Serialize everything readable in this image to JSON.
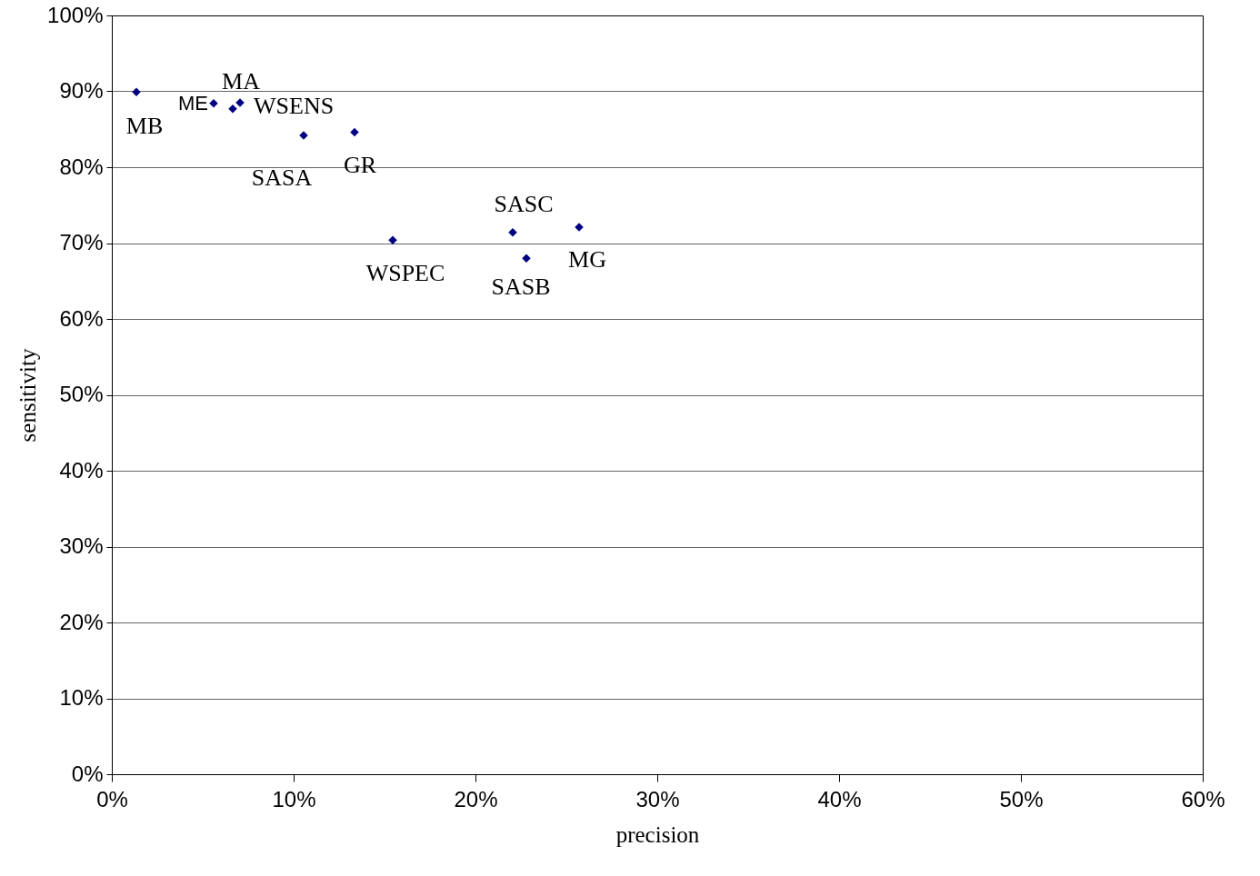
{
  "chart_data": {
    "type": "scatter",
    "xlabel": "precision",
    "ylabel": "sensitivity",
    "x": [
      1.35,
      5.6,
      6.65,
      7.05,
      10.55,
      13.35,
      15.45,
      22.05,
      22.8,
      25.7
    ],
    "series": [
      {
        "color": "#000080",
        "values": [
          89.9,
          88.4,
          87.7,
          88.5,
          84.2,
          84.6,
          70.4,
          71.4,
          68.0,
          72.1
        ]
      }
    ],
    "xlim": [
      0,
      60
    ],
    "ylim": [
      0,
      100
    ],
    "xticks": [
      {
        "value": 0,
        "label": "0%"
      },
      {
        "value": 10,
        "label": "10%"
      },
      {
        "value": 20,
        "label": "20%"
      },
      {
        "value": 30,
        "label": "30%"
      },
      {
        "value": 40,
        "label": "40%"
      },
      {
        "value": 50,
        "label": "50%"
      },
      {
        "value": 60,
        "label": "60%"
      }
    ],
    "yticks": [
      {
        "value": 0,
        "label": "0%"
      },
      {
        "value": 10,
        "label": "10%"
      },
      {
        "value": 20,
        "label": "20%"
      },
      {
        "value": 30,
        "label": "30%"
      },
      {
        "value": 40,
        "label": "40%"
      },
      {
        "value": 50,
        "label": "50%"
      },
      {
        "value": 60,
        "label": "60%"
      },
      {
        "value": 70,
        "label": "70%"
      },
      {
        "value": 80,
        "label": "80%"
      },
      {
        "value": 90,
        "label": "90%"
      },
      {
        "value": 100,
        "label": "100%"
      }
    ],
    "grid": "y",
    "marker": "diamond",
    "annotations": [
      {
        "text": "MB",
        "x": 1.35,
        "y": 89.9
      },
      {
        "text": "ME",
        "x": 5.6,
        "y": 88.4
      },
      {
        "text": "MA",
        "x": 6.65,
        "y": 87.7
      },
      {
        "text": "WSENS",
        "x": 7.05,
        "y": 88.5
      },
      {
        "text": "SASA",
        "x": 10.55,
        "y": 84.2
      },
      {
        "text": "GR",
        "x": 13.35,
        "y": 84.6
      },
      {
        "text": "WSPEC",
        "x": 15.45,
        "y": 70.4
      },
      {
        "text": "SASC",
        "x": 22.05,
        "y": 71.4
      },
      {
        "text": "SASB",
        "x": 22.8,
        "y": 68.0
      },
      {
        "text": "MG",
        "x": 25.7,
        "y": 72.1
      }
    ]
  }
}
